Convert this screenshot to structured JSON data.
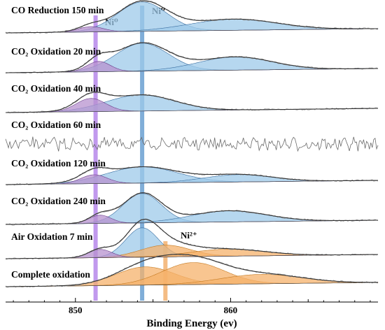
{
  "chart_data": {
    "type": "line",
    "title": "",
    "xlabel": "Binding Energy (ev)",
    "ylabel": "",
    "xlim": [
      845.5,
      869.5
    ],
    "xticks": [
      850,
      860
    ],
    "grid": false,
    "legend": "none",
    "colors": {
      "ni0": "#9ecae9",
      "ni0_edge": "#3a6ea0",
      "satellite": "#b792cf",
      "satellite_edge": "#6b3f8a",
      "ni2": "#f6b26b",
      "ni2_edge": "#c47a22",
      "envelope": "#333333",
      "raw": "#9a9a9a",
      "marker_ni0": "#4a8cc8",
      "marker_sat": "#a66ee6",
      "marker_ni2": "#f0a050"
    },
    "vertical_markers": [
      {
        "x": 851.3,
        "label": "Ni⁰",
        "color": "marker_sat"
      },
      {
        "x": 854.3,
        "label": "Ni⁰",
        "color": "marker_ni0"
      },
      {
        "x": 855.8,
        "label": "Ni²⁺",
        "color": "marker_ni2"
      }
    ],
    "series": [
      {
        "name": "CO Reduction 150 min",
        "fitted": true,
        "components": [
          {
            "kind": "ni0",
            "center": 854.3,
            "height": 1.0,
            "width": 1.6
          },
          {
            "kind": "ni0",
            "center": 860.2,
            "height": 0.38,
            "width": 2.8
          },
          {
            "kind": "satellite",
            "center": 851.0,
            "height": 0.18,
            "width": 0.8
          }
        ]
      },
      {
        "name": "CO₂ Oxidation 20 min",
        "fitted": true,
        "components": [
          {
            "kind": "ni0",
            "center": 854.3,
            "height": 0.95,
            "width": 1.7
          },
          {
            "kind": "ni0",
            "center": 860.3,
            "height": 0.45,
            "width": 2.4
          },
          {
            "kind": "satellite",
            "center": 851.5,
            "height": 0.35,
            "width": 0.75
          }
        ]
      },
      {
        "name": "CO₂ Oxidation 40 min",
        "fitted": true,
        "components": [
          {
            "kind": "ni0",
            "center": 854.2,
            "height": 0.55,
            "width": 2.2
          },
          {
            "kind": "satellite",
            "center": 851.0,
            "height": 0.45,
            "width": 0.95
          }
        ]
      },
      {
        "name": "CO₂ Oxidation 60 min",
        "fitted": false,
        "components": []
      },
      {
        "name": "CO₂ Oxidation 120 min",
        "fitted": true,
        "components": [
          {
            "kind": "ni0",
            "center": 854.3,
            "height": 0.55,
            "width": 2.3
          },
          {
            "kind": "ni0",
            "center": 860.5,
            "height": 0.25,
            "width": 2.2
          },
          {
            "kind": "satellite",
            "center": 851.2,
            "height": 0.3,
            "width": 0.85
          }
        ]
      },
      {
        "name": "CO₂ Oxidation 240 min",
        "fitted": true,
        "components": [
          {
            "kind": "ni0",
            "center": 854.3,
            "height": 1.0,
            "width": 1.25
          },
          {
            "kind": "ni0",
            "center": 859.9,
            "height": 0.38,
            "width": 2.4
          },
          {
            "kind": "satellite",
            "center": 851.6,
            "height": 0.28,
            "width": 0.7
          }
        ]
      },
      {
        "name": "Air Oxidation 7 min",
        "fitted": true,
        "components": [
          {
            "kind": "ni0",
            "center": 854.3,
            "height": 1.0,
            "width": 1.05
          },
          {
            "kind": "ni2",
            "center": 855.8,
            "height": 0.4,
            "width": 1.6
          },
          {
            "kind": "ni2",
            "center": 859.8,
            "height": 0.24,
            "width": 2.4
          },
          {
            "kind": "satellite",
            "center": 851.6,
            "height": 0.28,
            "width": 0.75
          }
        ]
      },
      {
        "name": "Complete oxidation",
        "fitted": true,
        "components": [
          {
            "kind": "ni2",
            "center": 854.5,
            "height": 0.62,
            "width": 1.9
          },
          {
            "kind": "ni2",
            "center": 857.6,
            "height": 0.75,
            "width": 2.0
          },
          {
            "kind": "ni2",
            "center": 862.0,
            "height": 0.32,
            "width": 2.6
          }
        ]
      }
    ]
  }
}
